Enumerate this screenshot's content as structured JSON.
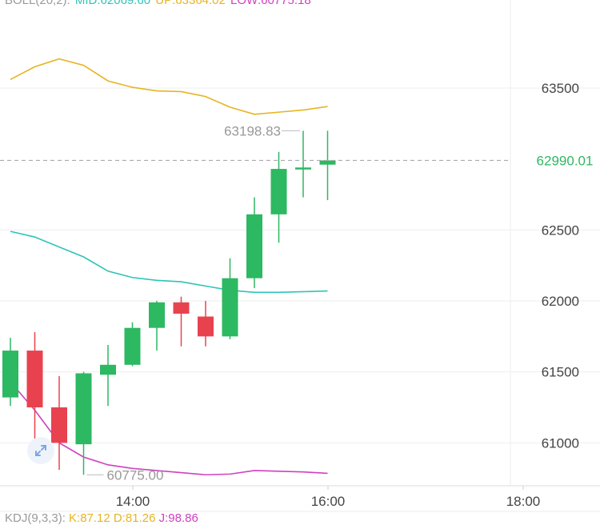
{
  "boll": {
    "label": "BOLL(20,2):",
    "mid": "MID:62069.60",
    "up": "UP:63364.02",
    "low": "LOW:60775.18",
    "colors": {
      "mid": "#2ec4b6",
      "up": "#e6b422",
      "low": "#d040c0",
      "label": "#9a9a9a"
    }
  },
  "kdj": {
    "label": "KDJ(9,3,3):",
    "k": "K:87.12",
    "d": "D:81.26",
    "j": "J:98.86"
  },
  "last_price_label": "62990.01",
  "max_label": "63198.83",
  "min_label": "60775.00",
  "expand_icon": "diagonal-arrows-icon",
  "chart_data": {
    "type": "candlestick",
    "y_ticks": [
      63500,
      62500,
      62000,
      61500,
      61000
    ],
    "ylim": [
      60700,
      63800
    ],
    "x_ticks": [
      "14:00",
      "16:00",
      "18:00"
    ],
    "last_price": 62990.01,
    "colors": {
      "up": "#2db862",
      "down": "#e8424f",
      "grid": "#eeeeee",
      "axis_text": "#444444"
    },
    "candles": [
      {
        "o": 61320,
        "h": 61740,
        "l": 61260,
        "c": 61650
      },
      {
        "o": 61650,
        "h": 61780,
        "l": 61030,
        "c": 61250
      },
      {
        "o": 61250,
        "h": 61470,
        "l": 60810,
        "c": 61000
      },
      {
        "o": 60990,
        "h": 61500,
        "l": 60775,
        "c": 61490
      },
      {
        "o": 61480,
        "h": 61690,
        "l": 61260,
        "c": 61550
      },
      {
        "o": 61550,
        "h": 61850,
        "l": 61540,
        "c": 61810
      },
      {
        "o": 61810,
        "h": 62000,
        "l": 61650,
        "c": 61990
      },
      {
        "o": 61990,
        "h": 62030,
        "l": 61680,
        "c": 61910
      },
      {
        "o": 61890,
        "h": 62000,
        "l": 61680,
        "c": 61750
      },
      {
        "o": 61750,
        "h": 62300,
        "l": 61730,
        "c": 62160
      },
      {
        "o": 62160,
        "h": 62730,
        "l": 62090,
        "c": 62610
      },
      {
        "o": 62610,
        "h": 63050,
        "l": 62410,
        "c": 62930
      },
      {
        "o": 62930,
        "h": 63198.83,
        "l": 62730,
        "c": 62940
      },
      {
        "o": 62960,
        "h": 63198.83,
        "l": 62710,
        "c": 62990.01
      }
    ],
    "boll_up": [
      63560,
      63650,
      63705,
      63660,
      63550,
      63505,
      63480,
      63475,
      63440,
      63365,
      63315,
      63330,
      63345,
      63370
    ],
    "boll_mid": [
      62490,
      62450,
      62380,
      62310,
      62210,
      62165,
      62145,
      62135,
      62105,
      62075,
      62060,
      62060,
      62065,
      62070
    ],
    "boll_low": [
      61430,
      61230,
      61000,
      60900,
      60845,
      60820,
      60805,
      60790,
      60775,
      60780,
      60805,
      60800,
      60795,
      60785
    ]
  }
}
